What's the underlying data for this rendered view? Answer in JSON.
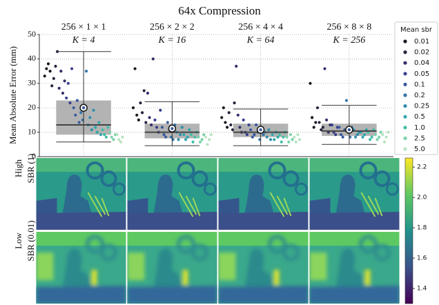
{
  "title": "64x Compression",
  "chart_data": {
    "type": "box-swarm",
    "ylabel": "Mean Absolute Error (mm)",
    "ylim": [
      0,
      50
    ],
    "yticks": [
      0,
      10,
      20,
      30,
      40,
      50
    ],
    "grid": true,
    "legend_title": "Mean sbr",
    "sbr_levels": [
      {
        "label": "0.01",
        "color": "#16161f"
      },
      {
        "label": "0.02",
        "color": "#28223f"
      },
      {
        "label": "0.04",
        "color": "#322f68"
      },
      {
        "label": "0.05",
        "color": "#3a3f8c"
      },
      {
        "label": "0.1",
        "color": "#3a5a9e"
      },
      {
        "label": "0.2",
        "color": "#3674a6"
      },
      {
        "label": "0.25",
        "color": "#318eab"
      },
      {
        "label": "0.5",
        "color": "#31a7ab"
      },
      {
        "label": "1.0",
        "color": "#43bea6"
      },
      {
        "label": "2.5",
        "color": "#7bd2aa"
      },
      {
        "label": "5.0",
        "color": "#b8e3c0"
      }
    ],
    "box_color": "#b3b3b3",
    "median_color": "#444444",
    "panels": [
      {
        "title": "256 × 1 × 1",
        "subtitle": "K = 4",
        "box": {
          "whisker_low": 6,
          "q1": 9,
          "median": 13,
          "q3": 23,
          "whisker_high": 43,
          "mean": 20
        },
        "points": [
          [
            33,
            36,
            38,
            35
          ],
          [
            29,
            32,
            37,
            43
          ],
          [
            28,
            35,
            26,
            31
          ],
          [
            24,
            30,
            22,
            36
          ],
          [
            20,
            17,
            23,
            14
          ],
          [
            18,
            15,
            21,
            35
          ],
          [
            13,
            16,
            11,
            19
          ],
          [
            12,
            10,
            14,
            9
          ],
          [
            11,
            9,
            8,
            12
          ],
          [
            10,
            8,
            7,
            9
          ],
          [
            9,
            7,
            6,
            8
          ]
        ]
      },
      {
        "title": "256 × 2 × 2",
        "subtitle": "K = 16",
        "box": {
          "whisker_low": 4.5,
          "q1": 7.5,
          "median": 10,
          "q3": 13.5,
          "whisker_high": 22.5,
          "mean": 11.5
        },
        "points": [
          [
            20,
            36,
            17,
            15
          ],
          [
            22,
            18,
            27,
            14
          ],
          [
            26,
            16,
            13,
            40
          ],
          [
            15,
            12,
            10,
            19
          ],
          [
            12,
            9,
            8,
            14
          ],
          [
            11,
            8,
            7,
            13
          ],
          [
            10,
            7,
            9,
            12
          ],
          [
            9,
            7,
            8,
            11
          ],
          [
            9,
            6,
            8,
            10
          ],
          [
            8,
            6,
            7,
            9
          ],
          [
            8,
            5,
            7,
            9
          ]
        ]
      },
      {
        "title": "256 × 4 × 4",
        "subtitle": "K = 64",
        "box": {
          "whisker_low": 4.5,
          "q1": 8,
          "median": 10,
          "q3": 13.5,
          "whisker_high": 19.5,
          "mean": 11
        },
        "points": [
          [
            16,
            20,
            14,
            12
          ],
          [
            18,
            13,
            11,
            22
          ],
          [
            37,
            17,
            12,
            10
          ],
          [
            15,
            10,
            9,
            13
          ],
          [
            11,
            8,
            9,
            13
          ],
          [
            10,
            7,
            12,
            9
          ],
          [
            10,
            8,
            11,
            7
          ],
          [
            9,
            7,
            10,
            8
          ],
          [
            9,
            6,
            8,
            10
          ],
          [
            8,
            6,
            9,
            7
          ],
          [
            8,
            6,
            9,
            7
          ]
        ]
      },
      {
        "title": "256 × 8 × 8",
        "subtitle": "K = 256",
        "box": {
          "whisker_low": 5,
          "q1": 8.5,
          "median": 10.5,
          "q3": 13.5,
          "whisker_high": 21,
          "mean": 11
        },
        "points": [
          [
            30,
            16,
            12,
            14
          ],
          [
            20,
            14,
            11,
            12
          ],
          [
            36,
            15,
            10,
            13
          ],
          [
            13,
            10,
            9,
            12
          ],
          [
            12,
            9,
            8,
            11
          ],
          [
            23,
            10,
            8,
            12
          ],
          [
            11,
            8,
            9,
            10
          ],
          [
            10,
            8,
            9,
            11
          ],
          [
            10,
            7,
            8,
            11
          ],
          [
            9,
            7,
            8,
            10
          ],
          [
            9,
            6,
            8,
            10
          ]
        ]
      }
    ]
  },
  "images": {
    "rows": [
      [
        "High",
        "SBR (1)"
      ],
      [
        "Low",
        "SBR (0.01)"
      ]
    ],
    "clim": [
      1.3,
      2.26
    ],
    "colorbar_ticks": [
      1.4,
      1.6,
      1.8,
      {
        "value": 2.0,
        "label": "2.0"
      },
      2.2
    ]
  }
}
